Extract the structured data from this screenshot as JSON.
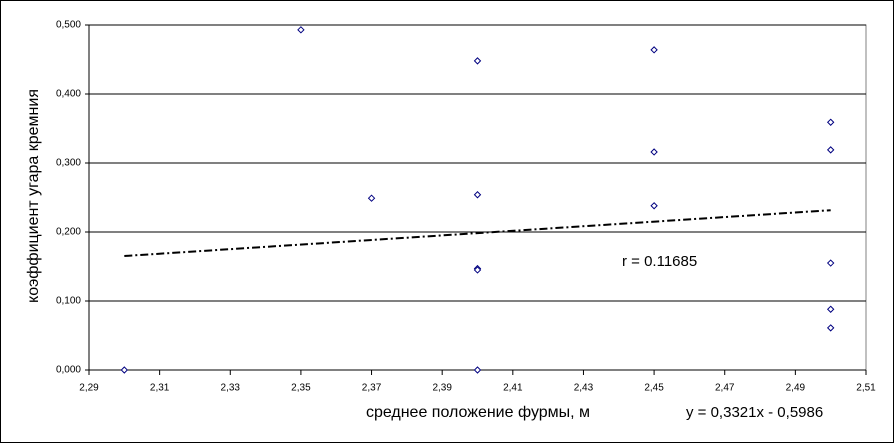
{
  "chart_data": {
    "type": "scatter",
    "xlabel": "среднее положение фурмы, м",
    "ylabel": "коэффициент угара кремния",
    "annotations": [
      "r = 0.11685",
      "y = 0,3321x - 0,5986"
    ],
    "xlim": [
      2.29,
      2.51
    ],
    "ylim": [
      0,
      0.5
    ],
    "xticks": [
      {
        "value": 2.29,
        "label": "2,29"
      },
      {
        "value": 2.31,
        "label": "2,31"
      },
      {
        "value": 2.33,
        "label": "2,33"
      },
      {
        "value": 2.35,
        "label": "2,35"
      },
      {
        "value": 2.37,
        "label": "2,37"
      },
      {
        "value": 2.39,
        "label": "2,39"
      },
      {
        "value": 2.41,
        "label": "2,41"
      },
      {
        "value": 2.43,
        "label": "2,43"
      },
      {
        "value": 2.45,
        "label": "2,45"
      },
      {
        "value": 2.47,
        "label": "2,47"
      },
      {
        "value": 2.49,
        "label": "2,49"
      },
      {
        "value": 2.51,
        "label": "2,51"
      }
    ],
    "yticks": [
      {
        "value": 0,
        "label": "0,000"
      },
      {
        "value": 0.1,
        "label": "0,100"
      },
      {
        "value": 0.2,
        "label": "0,200"
      },
      {
        "value": 0.3,
        "label": "0,300"
      },
      {
        "value": 0.4,
        "label": "0,400"
      },
      {
        "value": 0.5,
        "label": "0,500"
      }
    ],
    "grid": true,
    "series": [
      {
        "color": "#000080",
        "x": [
          2.3,
          2.35,
          2.37,
          2.4,
          2.4,
          2.4,
          2.4,
          2.4,
          2.45,
          2.45,
          2.45,
          2.5,
          2.5,
          2.5,
          2.5,
          2.5
        ],
        "values": [
          0.0,
          0.493,
          0.249,
          0.448,
          0.254,
          0.147,
          0.145,
          0.0,
          0.464,
          0.316,
          0.238,
          0.359,
          0.319,
          0.155,
          0.088,
          0.061
        ]
      }
    ],
    "trendline": {
      "color": "#000000",
      "x": [
        2.3,
        2.5
      ],
      "values": [
        0.1652,
        0.2316
      ]
    }
  }
}
